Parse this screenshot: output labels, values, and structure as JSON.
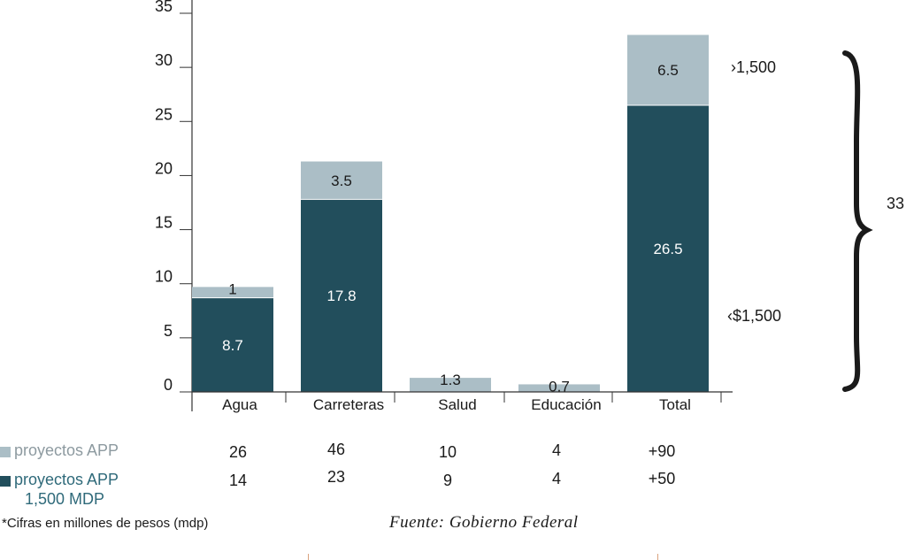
{
  "colors": {
    "dark": "#224e5c",
    "light": "#abbec6",
    "axis": "#333333"
  },
  "chart_data": {
    "type": "bar",
    "stacked": true,
    "categories": [
      "Agua",
      "Carreteras",
      "Salud",
      "Educación",
      "Total"
    ],
    "series": [
      {
        "name": "proyectos APP 1,500 MDP",
        "values": [
          8.7,
          17.8,
          null,
          null,
          26.5
        ],
        "labels": [
          "8.7",
          "17.8",
          "",
          "",
          "26.5"
        ]
      },
      {
        "name": "proyectos APP",
        "values": [
          1,
          3.5,
          1.3,
          0.7,
          6.5
        ],
        "labels": [
          "1",
          "3.5",
          "1.3",
          "0.7",
          "6.5"
        ]
      }
    ],
    "yticks": [
      "0",
      "5",
      "10",
      "15",
      "20",
      "25",
      "30",
      "35"
    ],
    "ylim": [
      0,
      35
    ],
    "annotations": {
      "upper": "›1,500",
      "lower": "‹$1,500",
      "brace_total": "33"
    }
  },
  "table": {
    "rows": [
      {
        "label": "proyectos APP",
        "values": [
          "26",
          "46",
          "10",
          "4",
          "+90"
        ]
      },
      {
        "label": "proyectos APP 1,500 MDP",
        "label_lines": [
          "proyectos APP",
          "1,500 MDP"
        ],
        "values": [
          "14",
          "23",
          "9",
          "4",
          "+50"
        ]
      }
    ]
  },
  "footnote": "*Cifras en millones de pesos (mdp)",
  "source": "Fuente: Gobierno Federal"
}
